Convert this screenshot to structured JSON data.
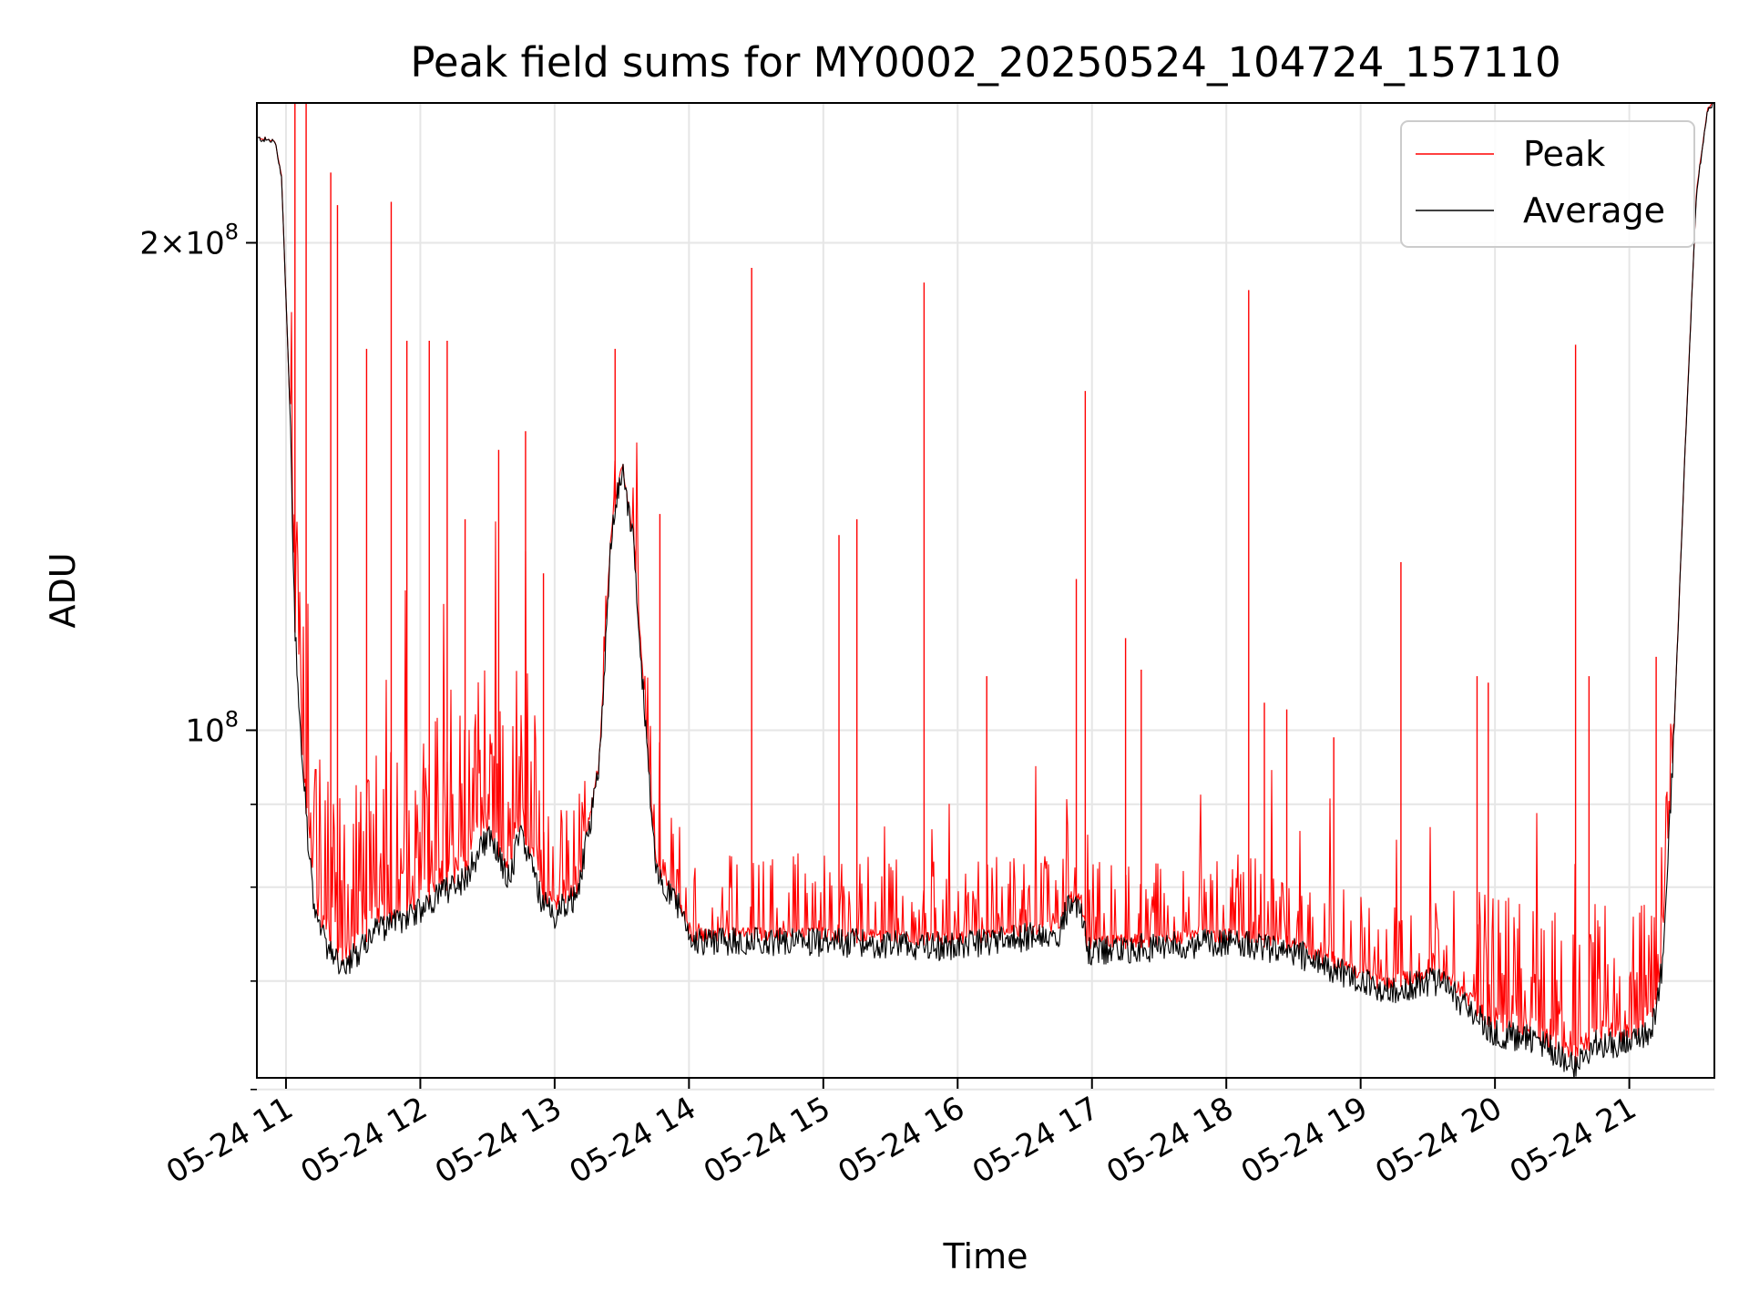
{
  "chart_data": {
    "type": "line",
    "title": "Peak field sums for MY0002_20250524_104724_157110",
    "xlabel": "Time",
    "ylabel": "ADU",
    "yscale": "log",
    "xlim": [
      "2025-05-24 10:47",
      "2025-05-24 21:38"
    ],
    "ylim": [
      61000000,
      244000000
    ],
    "grid": true,
    "legend_position": "top-right",
    "x_ticks": [
      "05-24 11",
      "05-24 12",
      "05-24 13",
      "05-24 14",
      "05-24 15",
      "05-24 16",
      "05-24 17",
      "05-24 18",
      "05-24 19",
      "05-24 20",
      "05-24 21"
    ],
    "x_tick_times": [
      "2025-05-24 11:00",
      "2025-05-24 12:00",
      "2025-05-24 13:00",
      "2025-05-24 14:00",
      "2025-05-24 15:00",
      "2025-05-24 16:00",
      "2025-05-24 17:00",
      "2025-05-24 18:00",
      "2025-05-24 19:00",
      "2025-05-24 20:00",
      "2025-05-24 21:00"
    ],
    "y_major_ticks": [
      {
        "value": 100000000,
        "label_base": "10",
        "label_exp": "8",
        "label_prefix": ""
      },
      {
        "value": 200000000,
        "label_base": "10",
        "label_exp": "8",
        "label_prefix": "2×"
      }
    ],
    "y_minor_ticks": [
      60000000,
      70000000,
      80000000,
      90000000
    ],
    "series": [
      {
        "name": "Peak",
        "color": "#ff0000",
        "line_width": 0.7
      },
      {
        "name": "Average",
        "color": "#000000",
        "line_width": 0.7
      }
    ],
    "average_profile": {
      "x": [
        "2025-05-24 10:47",
        "2025-05-24 10:55",
        "2025-05-24 10:58",
        "2025-05-24 11:02",
        "2025-05-24 11:04",
        "2025-05-24 11:07",
        "2025-05-24 11:10",
        "2025-05-24 11:12",
        "2025-05-24 11:15",
        "2025-05-24 11:20",
        "2025-05-24 11:27",
        "2025-05-24 11:30",
        "2025-05-24 11:40",
        "2025-05-24 12:00",
        "2025-05-24 12:20",
        "2025-05-24 12:30",
        "2025-05-24 12:40",
        "2025-05-24 12:45",
        "2025-05-24 12:50",
        "2025-05-24 12:55",
        "2025-05-24 13:00",
        "2025-05-24 13:10",
        "2025-05-24 13:20",
        "2025-05-24 13:25",
        "2025-05-24 13:30",
        "2025-05-24 13:35",
        "2025-05-24 13:40",
        "2025-05-24 13:45",
        "2025-05-24 13:55",
        "2025-05-24 14:00",
        "2025-05-24 15:00",
        "2025-05-24 16:00",
        "2025-05-24 16:45",
        "2025-05-24 16:50",
        "2025-05-24 16:55",
        "2025-05-24 16:58",
        "2025-05-24 17:30",
        "2025-05-24 18:00",
        "2025-05-24 18:30",
        "2025-05-24 18:50",
        "2025-05-24 19:10",
        "2025-05-24 19:20",
        "2025-05-24 19:35",
        "2025-05-24 19:50",
        "2025-05-24 20:00",
        "2025-05-24 20:15",
        "2025-05-24 20:25",
        "2025-05-24 20:35",
        "2025-05-24 20:45",
        "2025-05-24 21:00",
        "2025-05-24 21:10",
        "2025-05-24 21:15",
        "2025-05-24 21:20",
        "2025-05-24 21:25",
        "2025-05-24 21:30",
        "2025-05-24 21:35",
        "2025-05-24 21:38"
      ],
      "y": [
        232000000,
        231000000,
        220000000,
        155000000,
        115000000,
        97000000,
        85000000,
        79000000,
        75000000,
        73000000,
        71000000,
        72500000,
        75000000,
        77500000,
        81000000,
        86000000,
        81000000,
        87000000,
        82000000,
        78000000,
        77000000,
        79000000,
        95000000,
        131000000,
        145000000,
        131000000,
        103000000,
        82000000,
        78000000,
        74000000,
        74000000,
        73500000,
        75000000,
        78000000,
        78000000,
        73000000,
        73500000,
        74000000,
        73000000,
        71000000,
        69000000,
        69500000,
        70000000,
        67000000,
        65000000,
        64500000,
        63500000,
        62000000,
        64000000,
        64000000,
        65000000,
        72000000,
        100000000,
        150000000,
        215000000,
        242000000,
        244000000
      ]
    },
    "peak_spikes": {
      "x": [
        "2025-05-24 11:04",
        "2025-05-24 11:09",
        "2025-05-24 11:20",
        "2025-05-24 11:23",
        "2025-05-24 11:36",
        "2025-05-24 11:47",
        "2025-05-24 11:54",
        "2025-05-24 12:04",
        "2025-05-24 12:12",
        "2025-05-24 12:20",
        "2025-05-24 12:35",
        "2025-05-24 12:47",
        "2025-05-24 12:55",
        "2025-05-24 13:27",
        "2025-05-24 13:47",
        "2025-05-24 14:28",
        "2025-05-24 15:07",
        "2025-05-24 15:15",
        "2025-05-24 15:45",
        "2025-05-24 16:13",
        "2025-05-24 16:53",
        "2025-05-24 16:57",
        "2025-05-24 17:15",
        "2025-05-24 17:22",
        "2025-05-24 18:10",
        "2025-05-24 18:17",
        "2025-05-24 18:27",
        "2025-05-24 18:48",
        "2025-05-24 19:18",
        "2025-05-24 19:52",
        "2025-05-24 19:57",
        "2025-05-24 20:36",
        "2025-05-24 20:42",
        "2025-05-24 21:12"
      ],
      "y": [
        244000000,
        244000000,
        221000000,
        211000000,
        172000000,
        212000000,
        174000000,
        174000000,
        174000000,
        135000000,
        149000000,
        153000000,
        125000000,
        172000000,
        136000000,
        193000000,
        132000000,
        135000000,
        189000000,
        108000000,
        124000000,
        162000000,
        114000000,
        109000000,
        187000000,
        104000000,
        103000000,
        99000000,
        127000000,
        108000000,
        107000000,
        173000000,
        108000000,
        111000000
      ]
    }
  }
}
